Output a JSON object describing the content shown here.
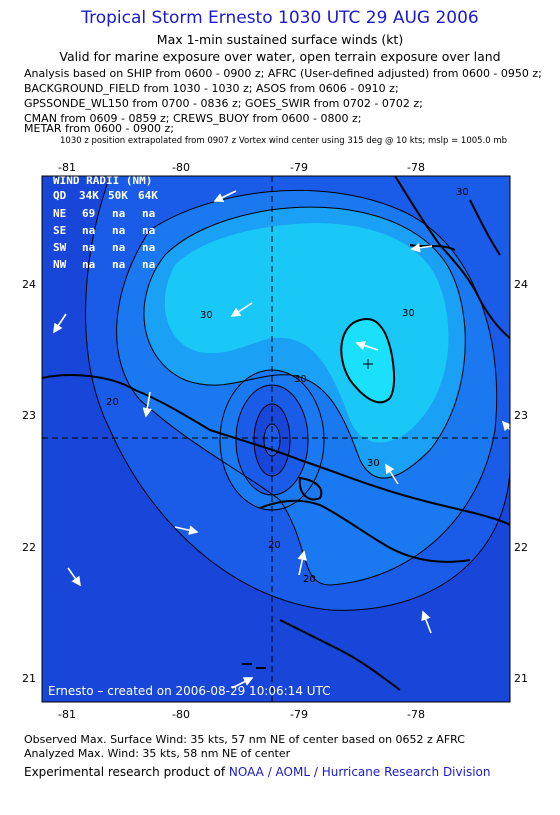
{
  "header": {
    "title": "Tropical Storm Ernesto 1030 UTC 29 AUG 2006",
    "subtitle1": "Max 1-min sustained surface winds (kt)",
    "subtitle2": "Valid for marine exposure over water, open terrain exposure over land"
  },
  "analysis_lines": [
    "Analysis based on  SHIP from 0600 - 0900 z;  AFRC (User-defined adjusted) from 0600 - 0950 z;",
    "BACKGROUND_FIELD from 1030 - 1030 z;  ASOS from 0606 - 0910 z;",
    "GPSSONDE_WL150 from 0700 - 0836 z;  GOES_SWIR from 0702 - 0702 z;",
    "CMAN from 0609 - 0859 z;  CREWS_BUOY from 0600 - 0800 z;",
    "METAR from 0600 - 0900 z;"
  ],
  "position_note": "1030 z position extrapolated from 0907 z Vortex wind center using 315 deg @ 10 kts; mslp = 1005.0 mb",
  "map": {
    "lon_ticks": [
      "-81",
      "-80",
      "-79",
      "-78"
    ],
    "lat_ticks": [
      "24",
      "23",
      "22",
      "21"
    ],
    "contour_labels": [
      "30",
      "30",
      "30",
      "30",
      "30",
      "20",
      "20",
      "20"
    ],
    "colors": {
      "ocean": "#1846d8",
      "band1": "#1a5ce8",
      "band2": "#1a78f0",
      "band3": "#1aa0f4",
      "band4": "#1ac8f8",
      "band5": "#1ae0fb",
      "core": "#1a5ce8"
    },
    "wind_radii": {
      "title": "WIND RADII (NM)",
      "header": [
        "QD",
        "34K",
        "50K",
        "64K"
      ],
      "rows": [
        [
          "NE",
          "69",
          "na",
          "na"
        ],
        [
          "SE",
          "na",
          "na",
          "na"
        ],
        [
          "SW",
          "na",
          "na",
          "na"
        ],
        [
          "NW",
          "na",
          "na",
          "na"
        ]
      ]
    },
    "credit": "Ernesto  –  created on 2006-08-29 10:06:14 UTC"
  },
  "footer": {
    "line1": "Observed Max. Surface Wind: 35 kts, 57 nm NE of center based on 0652 z AFRC",
    "line2": "Analyzed Max. Wind: 35 kts, 58 nm NE of center",
    "line3_prefix": "Experimental research product of ",
    "line3_link": "NOAA / AOML / Hurricane Research Division"
  }
}
